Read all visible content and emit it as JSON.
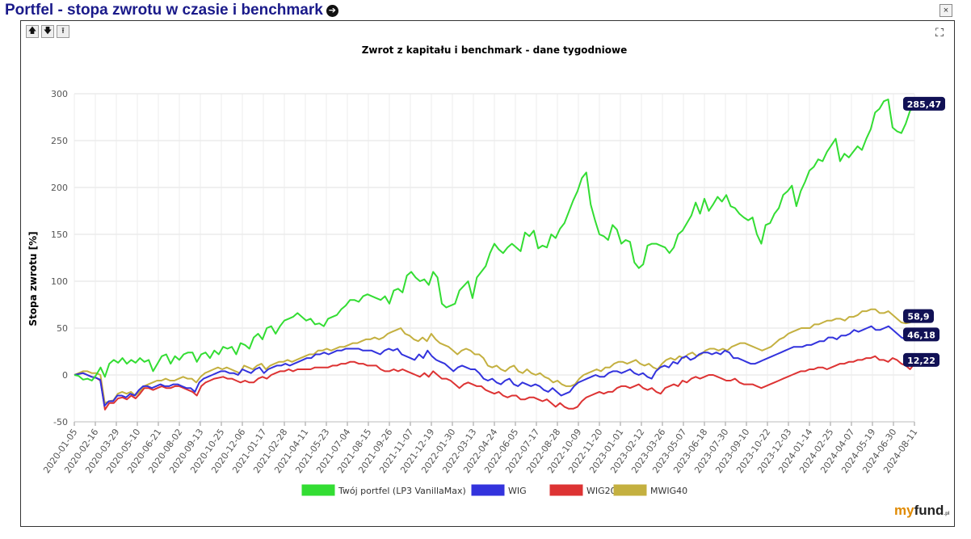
{
  "header": {
    "title": "Portfel - stopa zwrotu w czasie i benchmark",
    "title_icon": "circle-arrow-right-icon",
    "close_label": "×"
  },
  "toolbar": {
    "move_up": "🡅",
    "move_down": "🡇",
    "move_top": "⭱",
    "expand_icon": "expand-arrows-icon"
  },
  "branding": {
    "logo_my": "my",
    "logo_fund": "fund",
    "logo_pl": ".pl"
  },
  "chart_data": {
    "type": "line",
    "title": "Zwrot z kapitału i benchmark - dane tygodniowe",
    "ylabel": "Stopa zwrotu [%]",
    "xlabel": "",
    "ylim": [
      -50,
      300
    ],
    "yticks": [
      -50,
      0,
      50,
      100,
      150,
      200,
      250,
      300
    ],
    "grid": true,
    "legend_position": "bottom-center",
    "x_tick_labels": [
      "2020-01-05",
      "2020-02-16",
      "2020-03-29",
      "2020-05-10",
      "2020-06-21",
      "2020-08-02",
      "2020-09-13",
      "2020-10-25",
      "2020-12-06",
      "2021-01-17",
      "2021-02-28",
      "2021-04-11",
      "2021-05-23",
      "2021-07-04",
      "2021-08-15",
      "2021-09-26",
      "2021-11-07",
      "2021-12-19",
      "2022-01-30",
      "2022-03-13",
      "2022-04-24",
      "2022-06-05",
      "2022-07-17",
      "2022-08-28",
      "2022-10-09",
      "2022-11-20",
      "2023-01-01",
      "2023-02-12",
      "2023-03-26",
      "2023-05-07",
      "2023-06-18",
      "2023-07-30",
      "2023-09-10",
      "2023-10-22",
      "2023-12-03",
      "2024-01-14",
      "2024-02-25",
      "2024-04-07",
      "2024-05-19",
      "2024-06-30",
      "2024-08-11"
    ],
    "series": [
      {
        "name": "Twój portfel (LP3 VanillaMax)",
        "color": "#33dd33",
        "end_label": "285,47",
        "values": [
          0,
          -1,
          -5,
          -4,
          -6,
          0,
          8,
          -2,
          12,
          16,
          13,
          18,
          12,
          16,
          13,
          18,
          14,
          16,
          4,
          12,
          20,
          22,
          12,
          20,
          16,
          22,
          24,
          24,
          14,
          22,
          24,
          18,
          26,
          22,
          30,
          28,
          30,
          22,
          34,
          32,
          28,
          40,
          44,
          38,
          50,
          52,
          44,
          52,
          58,
          60,
          62,
          66,
          62,
          58,
          60,
          54,
          55,
          52,
          60,
          62,
          64,
          70,
          74,
          80,
          80,
          78,
          84,
          86,
          84,
          82,
          80,
          84,
          76,
          90,
          92,
          88,
          106,
          110,
          104,
          100,
          102,
          96,
          110,
          104,
          76,
          72,
          74,
          76,
          90,
          95,
          100,
          82,
          104,
          110,
          116,
          130,
          140,
          134,
          130,
          136,
          140,
          136,
          132,
          152,
          148,
          154,
          135,
          138,
          136,
          150,
          146,
          156,
          162,
          174,
          186,
          196,
          210,
          216,
          182,
          165,
          150,
          148,
          144,
          160,
          155,
          140,
          144,
          142,
          120,
          114,
          118,
          138,
          140,
          140,
          138,
          136,
          130,
          136,
          150,
          154,
          162,
          170,
          184,
          172,
          188,
          175,
          182,
          190,
          185,
          192,
          180,
          178,
          172,
          168,
          165,
          168,
          150,
          140,
          160,
          162,
          172,
          178,
          192,
          196,
          202,
          180,
          196,
          206,
          218,
          222,
          230,
          228,
          238,
          245,
          252,
          228,
          236,
          232,
          238,
          244,
          240,
          252,
          262,
          280,
          284,
          292,
          294,
          264,
          260,
          258,
          268,
          282,
          285.47
        ]
      },
      {
        "name": "WIG",
        "color": "#3333dd",
        "end_label": "46,18",
        "values": [
          0,
          1,
          2,
          0,
          -2,
          -3,
          -5,
          -33,
          -28,
          -28,
          -22,
          -22,
          -24,
          -20,
          -22,
          -16,
          -12,
          -12,
          -14,
          -12,
          -10,
          -12,
          -12,
          -10,
          -10,
          -12,
          -14,
          -14,
          -18,
          -8,
          -4,
          -2,
          0,
          2,
          4,
          4,
          2,
          2,
          0,
          6,
          4,
          2,
          6,
          8,
          2,
          6,
          8,
          10,
          10,
          12,
          10,
          12,
          14,
          16,
          18,
          18,
          22,
          22,
          24,
          22,
          24,
          26,
          26,
          28,
          28,
          28,
          28,
          26,
          26,
          26,
          24,
          22,
          26,
          28,
          26,
          28,
          22,
          20,
          18,
          16,
          22,
          18,
          26,
          20,
          16,
          14,
          12,
          8,
          4,
          8,
          10,
          8,
          6,
          6,
          2,
          -4,
          -6,
          -4,
          -8,
          -10,
          -6,
          -4,
          -10,
          -12,
          -8,
          -10,
          -12,
          -10,
          -12,
          -16,
          -18,
          -14,
          -18,
          -22,
          -20,
          -18,
          -12,
          -8,
          -6,
          -4,
          -2,
          0,
          -2,
          -2,
          2,
          4,
          4,
          2,
          4,
          6,
          2,
          0,
          2,
          -2,
          -4,
          4,
          8,
          10,
          8,
          14,
          12,
          18,
          20,
          16,
          18,
          22,
          24,
          24,
          22,
          24,
          22,
          26,
          24,
          18,
          18,
          16,
          14,
          12,
          12,
          14,
          16,
          18,
          20,
          22,
          24,
          26,
          28,
          30,
          30,
          30,
          32,
          32,
          34,
          36,
          36,
          40,
          40,
          38,
          42,
          42,
          44,
          48,
          46,
          48,
          50,
          52,
          48,
          48,
          50,
          52,
          48,
          44,
          40,
          38,
          42,
          46.18
        ]
      },
      {
        "name": "WIG20",
        "color": "#dd3333",
        "end_label": "12,22",
        "values": [
          0,
          1,
          2,
          0,
          -2,
          -3,
          -6,
          -37,
          -30,
          -30,
          -25,
          -24,
          -26,
          -22,
          -25,
          -20,
          -14,
          -14,
          -16,
          -14,
          -12,
          -14,
          -14,
          -12,
          -12,
          -14,
          -16,
          -18,
          -22,
          -12,
          -8,
          -6,
          -4,
          -3,
          -2,
          -4,
          -4,
          -6,
          -8,
          -6,
          -8,
          -8,
          -4,
          -2,
          -4,
          0,
          2,
          4,
          4,
          6,
          4,
          6,
          6,
          6,
          6,
          8,
          8,
          8,
          8,
          10,
          10,
          12,
          12,
          14,
          14,
          12,
          12,
          10,
          10,
          10,
          6,
          4,
          4,
          6,
          4,
          6,
          4,
          2,
          0,
          -2,
          2,
          -2,
          4,
          0,
          -4,
          -4,
          -6,
          -10,
          -14,
          -10,
          -8,
          -10,
          -12,
          -12,
          -16,
          -18,
          -20,
          -18,
          -22,
          -24,
          -22,
          -22,
          -26,
          -26,
          -24,
          -24,
          -26,
          -28,
          -26,
          -30,
          -34,
          -30,
          -34,
          -36,
          -36,
          -34,
          -28,
          -24,
          -22,
          -20,
          -18,
          -20,
          -18,
          -18,
          -14,
          -12,
          -12,
          -14,
          -12,
          -10,
          -14,
          -16,
          -14,
          -18,
          -20,
          -14,
          -12,
          -10,
          -12,
          -6,
          -8,
          -4,
          -2,
          -4,
          -2,
          0,
          0,
          -2,
          -4,
          -6,
          -6,
          -4,
          -8,
          -10,
          -10,
          -10,
          -12,
          -14,
          -12,
          -10,
          -8,
          -6,
          -4,
          -2,
          0,
          2,
          4,
          4,
          6,
          6,
          8,
          8,
          6,
          8,
          10,
          12,
          12,
          14,
          14,
          16,
          16,
          18,
          18,
          20,
          16,
          16,
          14,
          18,
          16,
          12,
          10,
          6,
          12.22
        ]
      },
      {
        "name": "MWIG40",
        "color": "#c4b040",
        "end_label": "58,9",
        "values": [
          0,
          2,
          4,
          4,
          2,
          2,
          0,
          -30,
          -28,
          -27,
          -20,
          -18,
          -20,
          -18,
          -22,
          -18,
          -12,
          -10,
          -8,
          -6,
          -6,
          -4,
          -6,
          -6,
          -4,
          -2,
          -4,
          -4,
          -8,
          -2,
          2,
          4,
          6,
          8,
          6,
          8,
          6,
          4,
          2,
          10,
          8,
          6,
          10,
          12,
          6,
          10,
          12,
          14,
          14,
          16,
          14,
          16,
          18,
          20,
          22,
          22,
          26,
          26,
          28,
          26,
          28,
          30,
          30,
          32,
          34,
          34,
          36,
          38,
          38,
          40,
          38,
          40,
          44,
          46,
          48,
          50,
          44,
          42,
          38,
          36,
          40,
          36,
          44,
          38,
          34,
          32,
          30,
          26,
          22,
          26,
          28,
          26,
          22,
          22,
          18,
          10,
          8,
          10,
          6,
          4,
          8,
          10,
          4,
          2,
          6,
          2,
          0,
          2,
          -2,
          -4,
          -8,
          -6,
          -10,
          -12,
          -12,
          -10,
          -4,
          0,
          2,
          4,
          6,
          4,
          8,
          8,
          12,
          14,
          14,
          12,
          14,
          16,
          12,
          10,
          12,
          8,
          6,
          12,
          16,
          18,
          16,
          20,
          18,
          22,
          24,
          20,
          22,
          26,
          28,
          28,
          26,
          28,
          26,
          30,
          32,
          34,
          34,
          32,
          30,
          28,
          26,
          28,
          30,
          34,
          38,
          40,
          44,
          46,
          48,
          50,
          50,
          50,
          54,
          54,
          56,
          58,
          58,
          60,
          60,
          58,
          62,
          62,
          64,
          68,
          68,
          70,
          70,
          66,
          66,
          68,
          64,
          60,
          56,
          55,
          56,
          58.9
        ]
      }
    ]
  }
}
